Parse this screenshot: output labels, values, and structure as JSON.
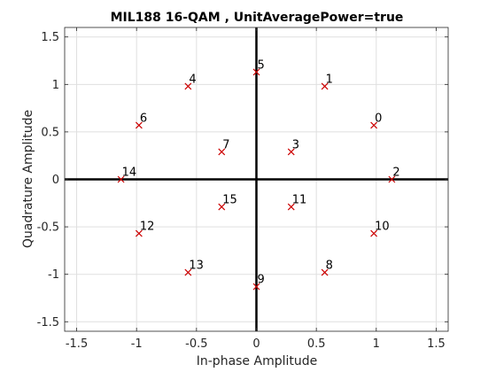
{
  "chart_data": {
    "type": "scatter",
    "title": "MIL188 16-QAM , UnitAveragePower=true",
    "xlabel": "In-phase Amplitude",
    "ylabel": "Quadrature Amplitude",
    "xlim": [
      -1.6,
      1.6
    ],
    "ylim": [
      -1.6,
      1.6
    ],
    "xticks": [
      -1.5,
      -1,
      -0.5,
      0,
      0.5,
      1,
      1.5
    ],
    "yticks": [
      -1.5,
      -1,
      -0.5,
      0,
      0.5,
      1,
      1.5
    ],
    "xtick_labels": [
      "-1.5",
      "-1",
      "-0.5",
      "0",
      "0.5",
      "1",
      "1.5"
    ],
    "ytick_labels": [
      "-1.5",
      "-1",
      "-0.5",
      "0",
      "0.5",
      "1",
      "1.5"
    ],
    "grid": true,
    "marker": "x",
    "marker_color": "#cc0000",
    "points": [
      {
        "label": "0",
        "x": 0.98,
        "y": 0.57
      },
      {
        "label": "1",
        "x": 0.57,
        "y": 0.98
      },
      {
        "label": "2",
        "x": 1.13,
        "y": 0.0
      },
      {
        "label": "3",
        "x": 0.29,
        "y": 0.29
      },
      {
        "label": "4",
        "x": -0.57,
        "y": 0.98
      },
      {
        "label": "5",
        "x": 0.0,
        "y": 1.13
      },
      {
        "label": "6",
        "x": -0.98,
        "y": 0.57
      },
      {
        "label": "7",
        "x": -0.29,
        "y": 0.29
      },
      {
        "label": "8",
        "x": 0.57,
        "y": -0.98
      },
      {
        "label": "9",
        "x": 0.0,
        "y": -1.13
      },
      {
        "label": "10",
        "x": 0.98,
        "y": -0.57
      },
      {
        "label": "11",
        "x": 0.29,
        "y": -0.29
      },
      {
        "label": "12",
        "x": -0.98,
        "y": -0.57
      },
      {
        "label": "13",
        "x": -0.57,
        "y": -0.98
      },
      {
        "label": "14",
        "x": -1.13,
        "y": 0.0
      },
      {
        "label": "15",
        "x": -0.29,
        "y": -0.29
      }
    ]
  }
}
